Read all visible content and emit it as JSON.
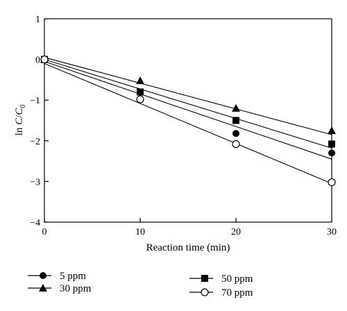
{
  "chart_data": {
    "type": "scatter",
    "xlabel": "Reaction time (min)",
    "ylabel": {
      "prefix": "ln ",
      "c": "C",
      "slash": "/",
      "c0": "C",
      "sub": "0"
    },
    "xlim": [
      0,
      30
    ],
    "ylim": [
      -4,
      1
    ],
    "xticks": [
      0,
      10,
      20,
      30
    ],
    "yticks": [
      1,
      0,
      -1,
      -2,
      -3,
      -4
    ],
    "grid": false,
    "legend_position": "bottom",
    "fit_lines": true,
    "series": [
      {
        "name": "5 ppm",
        "marker": "filled-circle",
        "x": [
          0,
          20,
          30
        ],
        "y": [
          0.0,
          -1.82,
          -2.3
        ],
        "fit": {
          "x": [
            0,
            30
          ],
          "y": [
            -0.05,
            -2.45
          ]
        }
      },
      {
        "name": "30 ppm",
        "marker": "filled-triangle",
        "x": [
          0,
          10,
          20,
          30
        ],
        "y": [
          0.0,
          -0.52,
          -1.2,
          -1.75
        ],
        "fit": {
          "x": [
            0,
            30
          ],
          "y": [
            0.05,
            -1.85
          ]
        }
      },
      {
        "name": "50 ppm",
        "marker": "filled-square",
        "x": [
          0,
          10,
          20,
          30
        ],
        "y": [
          0.0,
          -0.8,
          -1.5,
          -2.08
        ],
        "fit": {
          "x": [
            0,
            30
          ],
          "y": [
            0.0,
            -2.18
          ]
        }
      },
      {
        "name": "70 ppm",
        "marker": "open-circle",
        "x": [
          0,
          10,
          20,
          30
        ],
        "y": [
          0.0,
          -0.98,
          -2.08,
          -3.02
        ],
        "fit": {
          "x": [
            0,
            30
          ],
          "y": [
            -0.1,
            -3.05
          ]
        }
      }
    ]
  }
}
